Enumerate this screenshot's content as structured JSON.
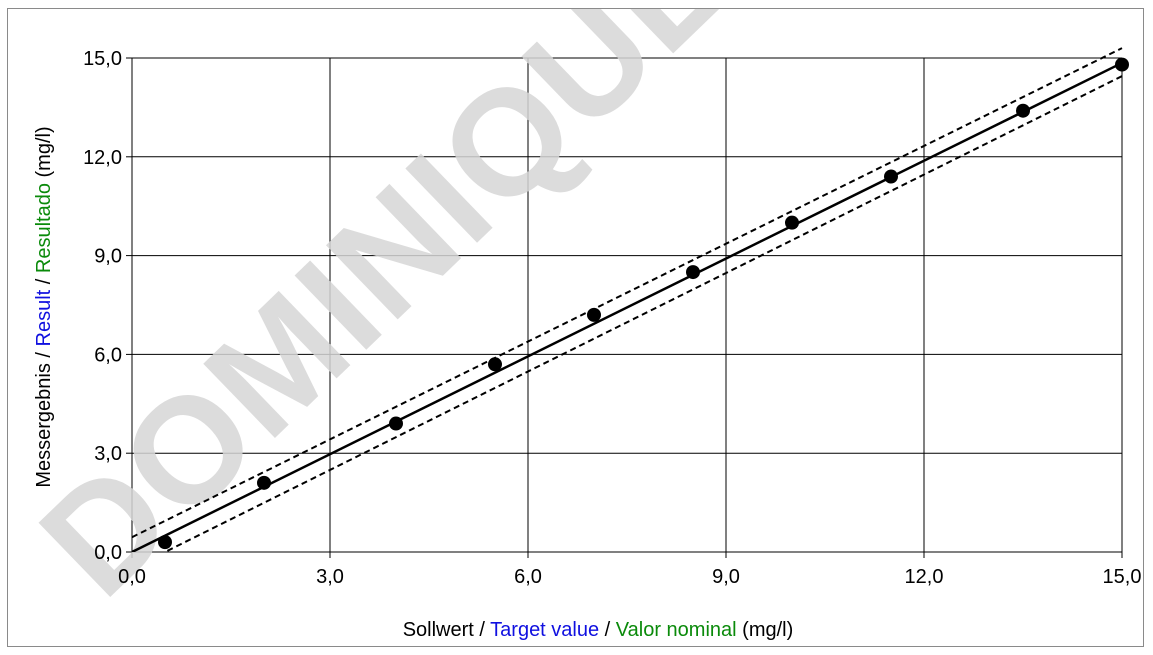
{
  "watermark": "DOMINIQUE",
  "chart_data": {
    "type": "scatter",
    "xlabel_parts": [
      {
        "text": "Sollwert",
        "color": "#000000"
      },
      {
        "text": " / ",
        "color": "#000000"
      },
      {
        "text": "Target value",
        "color": "#1010e0"
      },
      {
        "text": " / ",
        "color": "#000000"
      },
      {
        "text": "Valor nominal",
        "color": "#0a8a0a"
      },
      {
        "text": " (mg/l)",
        "color": "#000000"
      }
    ],
    "ylabel_parts": [
      {
        "text": "Messergebnis",
        "color": "#000000"
      },
      {
        "text": " / ",
        "color": "#000000"
      },
      {
        "text": "Result",
        "color": "#1010e0"
      },
      {
        "text": " / ",
        "color": "#000000"
      },
      {
        "text": "Resultado",
        "color": "#0a8a0a"
      },
      {
        "text": " (mg/l)",
        "color": "#000000"
      }
    ],
    "xlim": [
      0,
      15
    ],
    "ylim": [
      0,
      15
    ],
    "xticks": [
      0,
      3,
      6,
      9,
      12,
      15
    ],
    "yticks": [
      0,
      3,
      6,
      9,
      12,
      15
    ],
    "xtick_labels": [
      "0,0",
      "3,0",
      "6,0",
      "9,0",
      "12,0",
      "15,0"
    ],
    "ytick_labels": [
      "0,0",
      "3,0",
      "6,0",
      "9,0",
      "12,0",
      "15,0"
    ],
    "grid": true,
    "series": [
      {
        "type": "scatter",
        "color": "#000000",
        "x": [
          0.5,
          2.0,
          4.0,
          5.5,
          7.0,
          8.5,
          10.0,
          11.5,
          13.5,
          15.0
        ],
        "y": [
          0.3,
          2.1,
          3.9,
          5.7,
          7.2,
          8.5,
          10.0,
          11.4,
          13.4,
          14.8
        ]
      },
      {
        "type": "line",
        "style": "solid",
        "color": "#000000",
        "x": [
          0,
          15
        ],
        "y": [
          0.0,
          14.85
        ]
      },
      {
        "type": "line",
        "style": "dashed",
        "color": "#000000",
        "x": [
          0,
          15
        ],
        "y": [
          0.45,
          15.3
        ]
      },
      {
        "type": "line",
        "style": "dashed",
        "color": "#000000",
        "x": [
          0.4,
          15
        ],
        "y": [
          -0.1,
          14.45
        ]
      }
    ]
  }
}
